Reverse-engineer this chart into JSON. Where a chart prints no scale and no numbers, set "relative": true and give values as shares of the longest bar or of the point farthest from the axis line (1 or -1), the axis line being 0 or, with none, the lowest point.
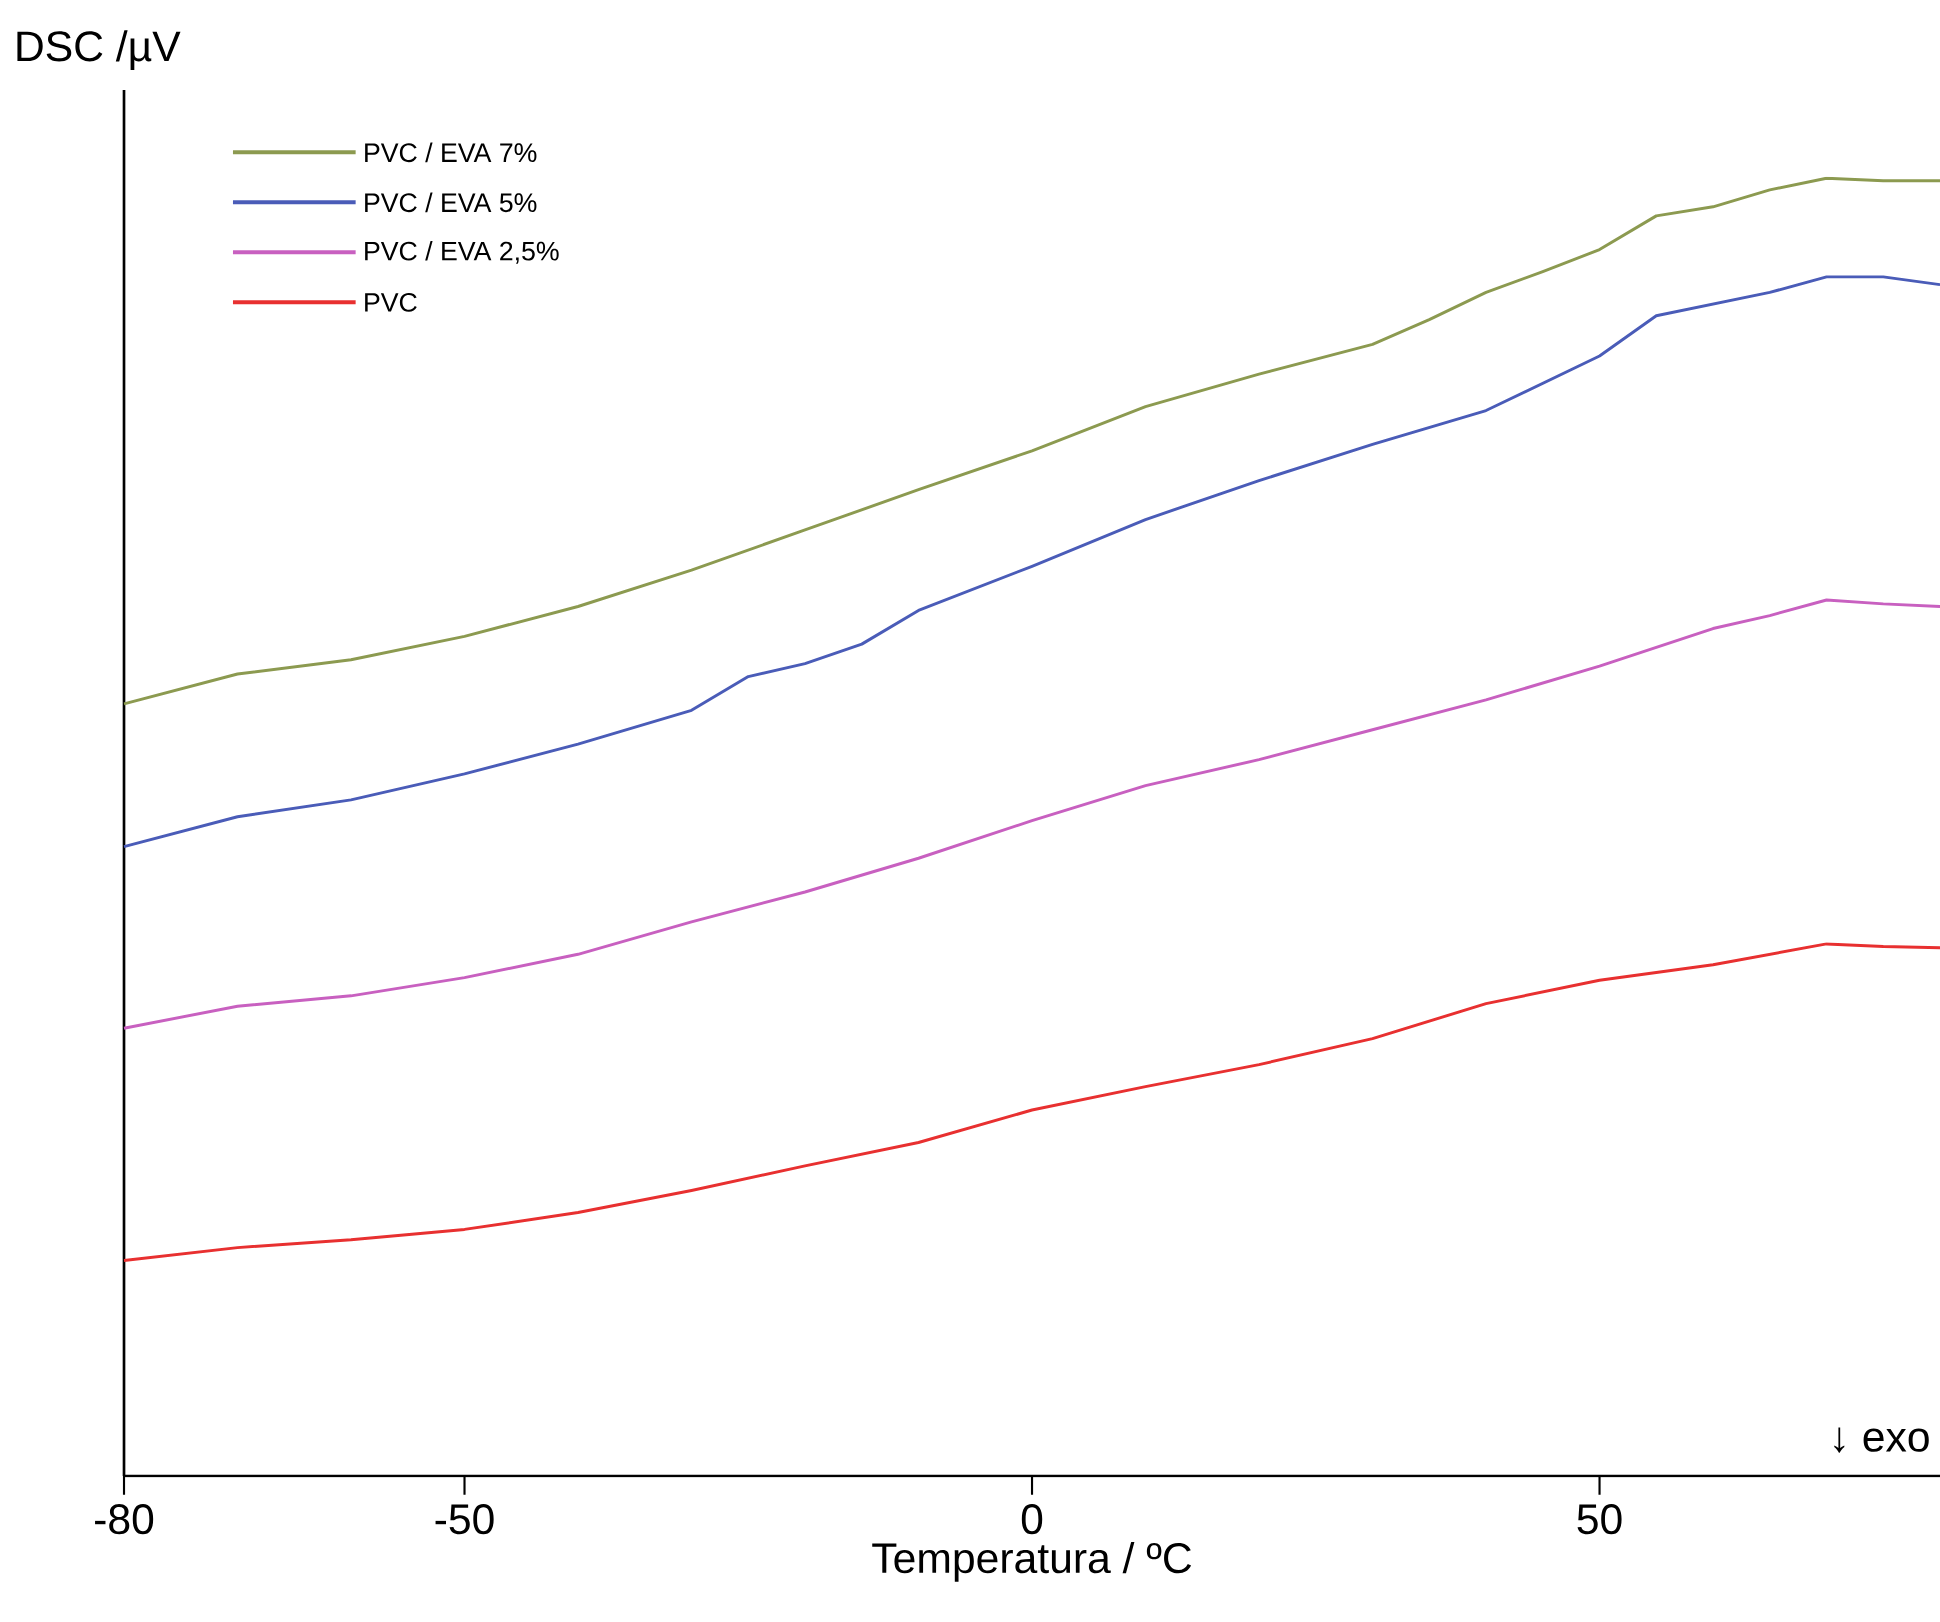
{
  "chart_data": {
    "type": "line",
    "relative": true,
    "xlabel": "Temperatura / ºC",
    "ylabel": "DSC /µV",
    "xlim": [
      -80,
      80
    ],
    "xticks": [
      -80,
      -50,
      0,
      50
    ],
    "tick_labels": "x",
    "legend": "top left",
    "grid": false,
    "marker": "none",
    "line_style": "solid",
    "annotations": [
      "↓ exo"
    ],
    "series": [
      {
        "name": "PVC / EVA 7%",
        "color": "#8c9a50",
        "x": [
          -80,
          -70,
          -60,
          -50,
          -40,
          -30,
          -20,
          -10,
          0,
          10,
          20,
          30,
          35,
          40,
          45,
          50,
          55,
          60,
          65,
          70,
          75,
          80
        ],
        "values": [
          0.595,
          0.618,
          0.629,
          0.647,
          0.67,
          0.698,
          0.729,
          0.76,
          0.79,
          0.824,
          0.849,
          0.872,
          0.891,
          0.912,
          0.928,
          0.945,
          0.971,
          0.978,
          0.991,
          1.0,
          0.998,
          0.998
        ]
      },
      {
        "name": "PVC / EVA 5%",
        "color": "#4a5cb8",
        "x": [
          -80,
          -70,
          -60,
          -50,
          -40,
          -30,
          -25,
          -20,
          -15,
          -10,
          0,
          10,
          20,
          30,
          40,
          50,
          55,
          60,
          65,
          70,
          75,
          80
        ],
        "values": [
          0.485,
          0.508,
          0.521,
          0.541,
          0.564,
          0.59,
          0.616,
          0.626,
          0.641,
          0.667,
          0.701,
          0.737,
          0.767,
          0.795,
          0.821,
          0.863,
          0.894,
          0.903,
          0.912,
          0.924,
          0.924,
          0.918
        ]
      },
      {
        "name": "PVC / EVA 2,5%",
        "color": "#c860c0",
        "x": [
          -80,
          -70,
          -60,
          -50,
          -40,
          -30,
          -20,
          -10,
          0,
          10,
          20,
          30,
          40,
          50,
          60,
          65,
          70,
          75,
          80
        ],
        "values": [
          0.345,
          0.362,
          0.37,
          0.384,
          0.402,
          0.427,
          0.45,
          0.476,
          0.505,
          0.532,
          0.552,
          0.575,
          0.598,
          0.624,
          0.653,
          0.663,
          0.675,
          0.672,
          0.67
        ]
      },
      {
        "name": "PVC",
        "color": "#e83030",
        "x": [
          -80,
          -70,
          -60,
          -50,
          -40,
          -30,
          -20,
          -10,
          0,
          10,
          20,
          30,
          40,
          50,
          60,
          65,
          70,
          75,
          80
        ],
        "values": [
          0.166,
          0.176,
          0.182,
          0.19,
          0.203,
          0.22,
          0.239,
          0.257,
          0.282,
          0.3,
          0.317,
          0.337,
          0.364,
          0.382,
          0.394,
          0.402,
          0.41,
          0.408,
          0.407
        ]
      }
    ]
  }
}
